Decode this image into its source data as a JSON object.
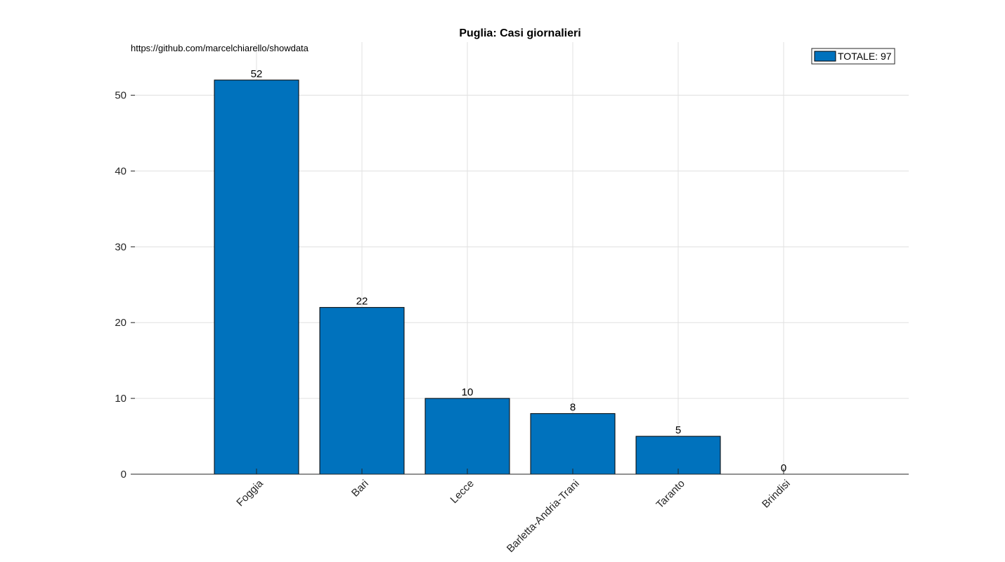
{
  "source_text": "https://github.com/marcelchiarello/showdata",
  "chart_data": {
    "type": "bar",
    "title": "Puglia: Casi giornalieri",
    "xlabel": "",
    "ylabel": "",
    "categories": [
      "Foggia",
      "Bari",
      "Lecce",
      "Barletta-Andria-Trani",
      "Taranto",
      "Brindisi"
    ],
    "values": [
      52,
      22,
      10,
      8,
      5,
      0
    ],
    "data_labels": [
      "52",
      "22",
      "10",
      "8",
      "5",
      "0"
    ],
    "ylim": [
      0,
      57
    ],
    "yticks": [
      0,
      10,
      20,
      30,
      40,
      50
    ],
    "ytick_labels": [
      "0",
      "10",
      "20",
      "30",
      "40",
      "50"
    ],
    "grid": true,
    "bar_color": "#0072bd",
    "legend": {
      "label": "TOTALE: 97",
      "position": "top-right"
    }
  }
}
